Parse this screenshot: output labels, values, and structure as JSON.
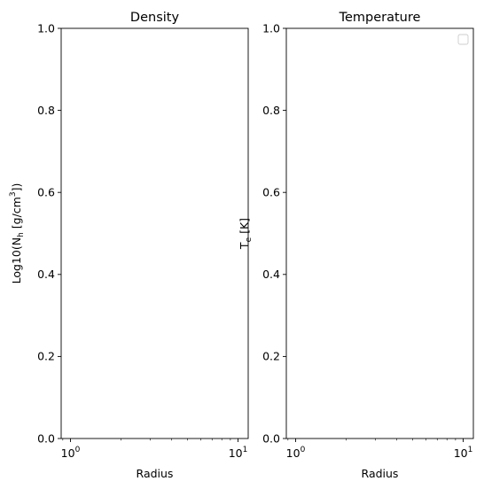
{
  "chart_data": [
    {
      "type": "line",
      "title": "Density",
      "xlabel": "Radius",
      "ylabel_main": "Log10(N",
      "ylabel_sub": "h",
      "ylabel_mid": " [g/cm",
      "ylabel_sup": "3",
      "ylabel_end": "])",
      "xscale": "log",
      "xlim": [
        0.88,
        11.5
      ],
      "ylim": [
        0,
        1
      ],
      "xticks": [
        {
          "value": 1,
          "base": "10",
          "exp": "0"
        },
        {
          "value": 10,
          "base": "10",
          "exp": "1"
        }
      ],
      "yticks": [
        {
          "value": 0.0,
          "label": "0.0"
        },
        {
          "value": 0.2,
          "label": "0.2"
        },
        {
          "value": 0.4,
          "label": "0.4"
        },
        {
          "value": 0.6,
          "label": "0.6"
        },
        {
          "value": 0.8,
          "label": "0.8"
        },
        {
          "value": 1.0,
          "label": "1.0"
        }
      ],
      "series": [],
      "legend": null
    },
    {
      "type": "line",
      "title": "Temperature",
      "xlabel": "Radius",
      "ylabel_main": "T",
      "ylabel_sub": "e",
      "ylabel_mid": " [K]",
      "ylabel_sup": "",
      "ylabel_end": "",
      "xscale": "log",
      "xlim": [
        0.88,
        11.5
      ],
      "ylim": [
        0,
        1
      ],
      "xticks": [
        {
          "value": 1,
          "base": "10",
          "exp": "0"
        },
        {
          "value": 10,
          "base": "10",
          "exp": "1"
        }
      ],
      "yticks": [
        {
          "value": 0.0,
          "label": "0.0"
        },
        {
          "value": 0.2,
          "label": "0.2"
        },
        {
          "value": 0.4,
          "label": "0.4"
        },
        {
          "value": 0.6,
          "label": "0.6"
        },
        {
          "value": 0.8,
          "label": "0.8"
        },
        {
          "value": 1.0,
          "label": "1.0"
        }
      ],
      "series": [],
      "legend": "top-right (empty)"
    }
  ]
}
